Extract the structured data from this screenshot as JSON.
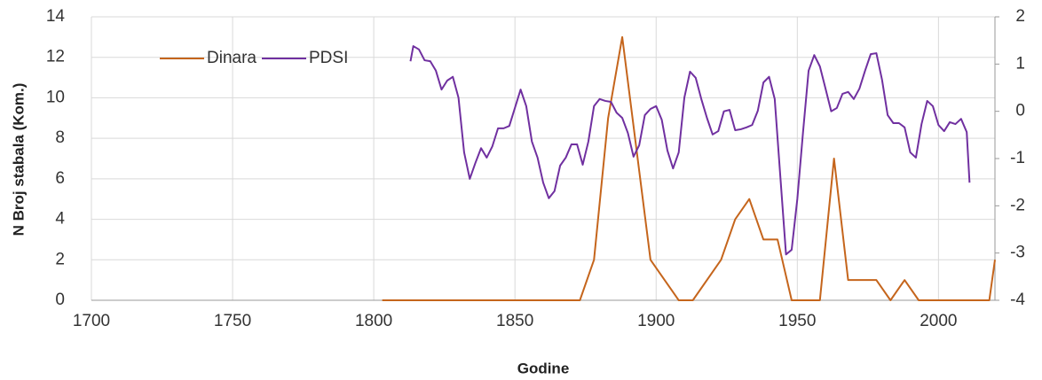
{
  "chart_data": {
    "type": "line",
    "x_label": "Godine",
    "y_label": "N Broj stabala (Kom.)",
    "xlim": [
      1700,
      2020
    ],
    "xticks": [
      1700,
      1750,
      1800,
      1850,
      1900,
      1950,
      2000
    ],
    "ylim": [
      0,
      14
    ],
    "yticks": [
      0,
      2,
      4,
      6,
      8,
      10,
      12,
      14
    ],
    "y2lim": [
      -4,
      2
    ],
    "y2ticks": [
      -4,
      -3,
      -2,
      -1,
      0,
      1,
      2
    ],
    "grid": true,
    "legend": "top-left",
    "series": [
      {
        "name": "Dinara",
        "color": "#c5651c",
        "x": [
          1803,
          1873,
          1878,
          1883,
          1888,
          1898,
          1908,
          1913,
          1923,
          1928,
          1933,
          1938,
          1943,
          1948,
          1958,
          1963,
          1968,
          1978,
          1983,
          1988,
          1993,
          2018,
          2020
        ],
        "values": [
          0,
          0,
          2,
          9,
          13,
          2,
          0,
          0,
          2,
          4,
          5,
          3,
          3,
          0,
          0,
          7,
          1,
          1,
          0,
          1,
          0,
          0,
          2
        ]
      },
      {
        "name": "PDSI",
        "color": "#7030a0",
        "axis": "y2",
        "x": [
          1813,
          1814,
          1816,
          1818,
          1820,
          1822,
          1824,
          1826,
          1828,
          1830,
          1832,
          1834,
          1836,
          1838,
          1840,
          1842,
          1844,
          1846,
          1848,
          1852,
          1854,
          1856,
          1858,
          1860,
          1862,
          1864,
          1866,
          1868,
          1870,
          1872,
          1874,
          1876,
          1878,
          1880,
          1882,
          1884,
          1886,
          1888,
          1890,
          1892,
          1894,
          1896,
          1898,
          1900,
          1902,
          1904,
          1906,
          1908,
          1910,
          1912,
          1914,
          1916,
          1918,
          1920,
          1922,
          1924,
          1926,
          1928,
          1930,
          1932,
          1934,
          1936,
          1938,
          1940,
          1942,
          1944,
          1946,
          1948,
          1950,
          1952,
          1954,
          1956,
          1958,
          1960,
          1962,
          1964,
          1966,
          1968,
          1970,
          1972,
          1974,
          1976,
          1978,
          1980,
          1982,
          1984,
          1986,
          1988,
          1990,
          1992,
          1994,
          1996,
          1998,
          2000,
          2002,
          2004,
          2006,
          2008,
          2010,
          2011
        ],
        "values": [
          1.06,
          1.38,
          1.31,
          1.08,
          1.06,
          0.86,
          0.46,
          0.65,
          0.73,
          0.29,
          -0.87,
          -1.43,
          -1.09,
          -0.78,
          -0.98,
          -0.74,
          -0.36,
          -0.36,
          -0.31,
          0.46,
          0.11,
          -0.64,
          -0.98,
          -1.51,
          -1.84,
          -1.69,
          -1.15,
          -0.98,
          -0.7,
          -0.7,
          -1.13,
          -0.64,
          0.11,
          0.26,
          0.22,
          0.2,
          -0.03,
          -0.14,
          -0.46,
          -0.96,
          -0.72,
          -0.08,
          0.05,
          0.11,
          -0.18,
          -0.83,
          -1.21,
          -0.87,
          0.29,
          0.84,
          0.71,
          0.26,
          -0.14,
          -0.49,
          -0.42,
          0.0,
          0.03,
          -0.4,
          -0.38,
          -0.34,
          -0.29,
          0.01,
          0.61,
          0.73,
          0.26,
          -1.39,
          -3.03,
          -2.93,
          -1.86,
          -0.46,
          0.86,
          1.19,
          0.95,
          0.48,
          0,
          0.07,
          0.37,
          0.41,
          0.26,
          0.48,
          0.86,
          1.21,
          1.23,
          0.67,
          -0.08,
          -0.25,
          -0.25,
          -0.34,
          -0.87,
          -0.98,
          -0.27,
          0.22,
          0.11,
          -0.29,
          -0.42,
          -0.23,
          -0.27,
          -0.16,
          -0.44,
          -1.51
        ]
      }
    ]
  }
}
